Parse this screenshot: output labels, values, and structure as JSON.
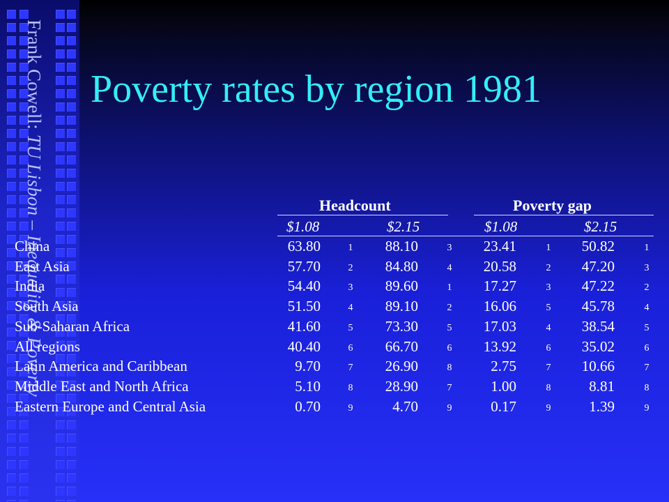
{
  "sidebar": {
    "author": "Frank Cowell: ",
    "course": "TU Lisbon – Inequality & Poverty"
  },
  "title": "Poverty rates by region 1981",
  "table": {
    "groups": [
      "Headcount",
      "Poverty gap"
    ],
    "subheaders": [
      "$1.08",
      "$2.15",
      "$1.08",
      "$2.15"
    ],
    "rows": [
      {
        "region": "China",
        "v": [
          "63.80",
          "88.10",
          "23.41",
          "50.82"
        ],
        "r": [
          "1",
          "3",
          "1",
          "1"
        ]
      },
      {
        "region": "East Asia",
        "v": [
          "57.70",
          "84.80",
          "20.58",
          "47.20"
        ],
        "r": [
          "2",
          "4",
          "2",
          "3"
        ]
      },
      {
        "region": "India",
        "v": [
          "54.40",
          "89.60",
          "17.27",
          "47.22"
        ],
        "r": [
          "3",
          "1",
          "3",
          "2"
        ]
      },
      {
        "region": "South Asia",
        "v": [
          "51.50",
          "89.10",
          "16.06",
          "45.78"
        ],
        "r": [
          "4",
          "2",
          "5",
          "4"
        ]
      },
      {
        "region": "Sub-Saharan Africa",
        "v": [
          "41.60",
          "73.30",
          "17.03",
          "38.54"
        ],
        "r": [
          "5",
          "5",
          "4",
          "5"
        ]
      },
      {
        "region": "All regions",
        "v": [
          "40.40",
          "66.70",
          "13.92",
          "35.02"
        ],
        "r": [
          "6",
          "6",
          "6",
          "6"
        ]
      },
      {
        "region": "Latin America and Caribbean",
        "v": [
          "9.70",
          "26.90",
          "2.75",
          "10.66"
        ],
        "r": [
          "7",
          "8",
          "7",
          "7"
        ]
      },
      {
        "region": "Middle East and North Africa",
        "v": [
          "5.10",
          "28.90",
          "1.00",
          "8.81"
        ],
        "r": [
          "8",
          "7",
          "8",
          "8"
        ]
      },
      {
        "region": "Eastern Europe and Central Asia",
        "v": [
          "0.70",
          "4.70",
          "0.17",
          "1.39"
        ],
        "r": [
          "9",
          "9",
          "9",
          "9"
        ]
      }
    ]
  },
  "colors": {
    "title": "#33eef7",
    "sidebar_text": "#b8c0ff",
    "background": "#2630f8"
  }
}
